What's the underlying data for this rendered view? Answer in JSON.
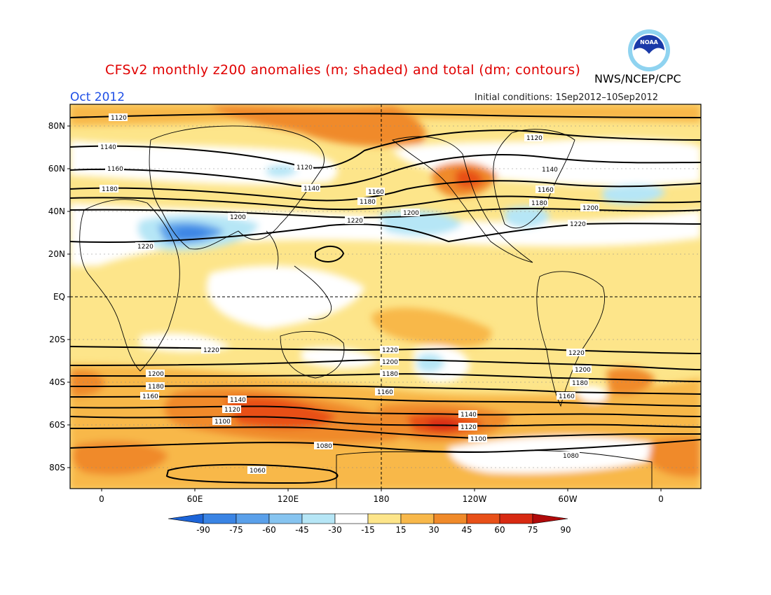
{
  "header": {
    "title": "CFSv2 monthly z200 anomalies (m; shaded) and total (dm; contours)",
    "agency": "NWS/NCEP/CPC",
    "month": "Oct 2012",
    "initial_conditions": "Initial conditions: 1Sep2012–10Sep2012",
    "logo_text": "NOAA"
  },
  "axes": {
    "lat_ticks": [
      "80N",
      "60N",
      "40N",
      "20N",
      "EQ",
      "20S",
      "40S",
      "60S",
      "80S"
    ],
    "lon_ticks": [
      "0",
      "60E",
      "120E",
      "180",
      "120W",
      "60W",
      "0"
    ]
  },
  "contours": {
    "nh_labels": [
      "1120",
      "1140",
      "1160",
      "1180",
      "1200",
      "1220"
    ],
    "sh_labels": [
      "1220",
      "1200",
      "1180",
      "1160",
      "1140",
      "1120",
      "1100",
      "1080",
      "1060"
    ]
  },
  "colorbar": {
    "labels": [
      "-90",
      "-75",
      "-60",
      "-45",
      "-30",
      "-15",
      "15",
      "30",
      "45",
      "60",
      "75",
      "90"
    ],
    "colors": [
      "#1c64d8",
      "#3a84e4",
      "#5aa0ea",
      "#86c4f0",
      "#b6e6f6",
      "#ffffff",
      "#fde58a",
      "#f8b84a",
      "#f08a2a",
      "#e85018",
      "#d82a12",
      "#b00a0a"
    ]
  },
  "colors": {
    "title": "#e00000",
    "month": "#1e4ee6",
    "background_anomaly": "#fde58a"
  }
}
